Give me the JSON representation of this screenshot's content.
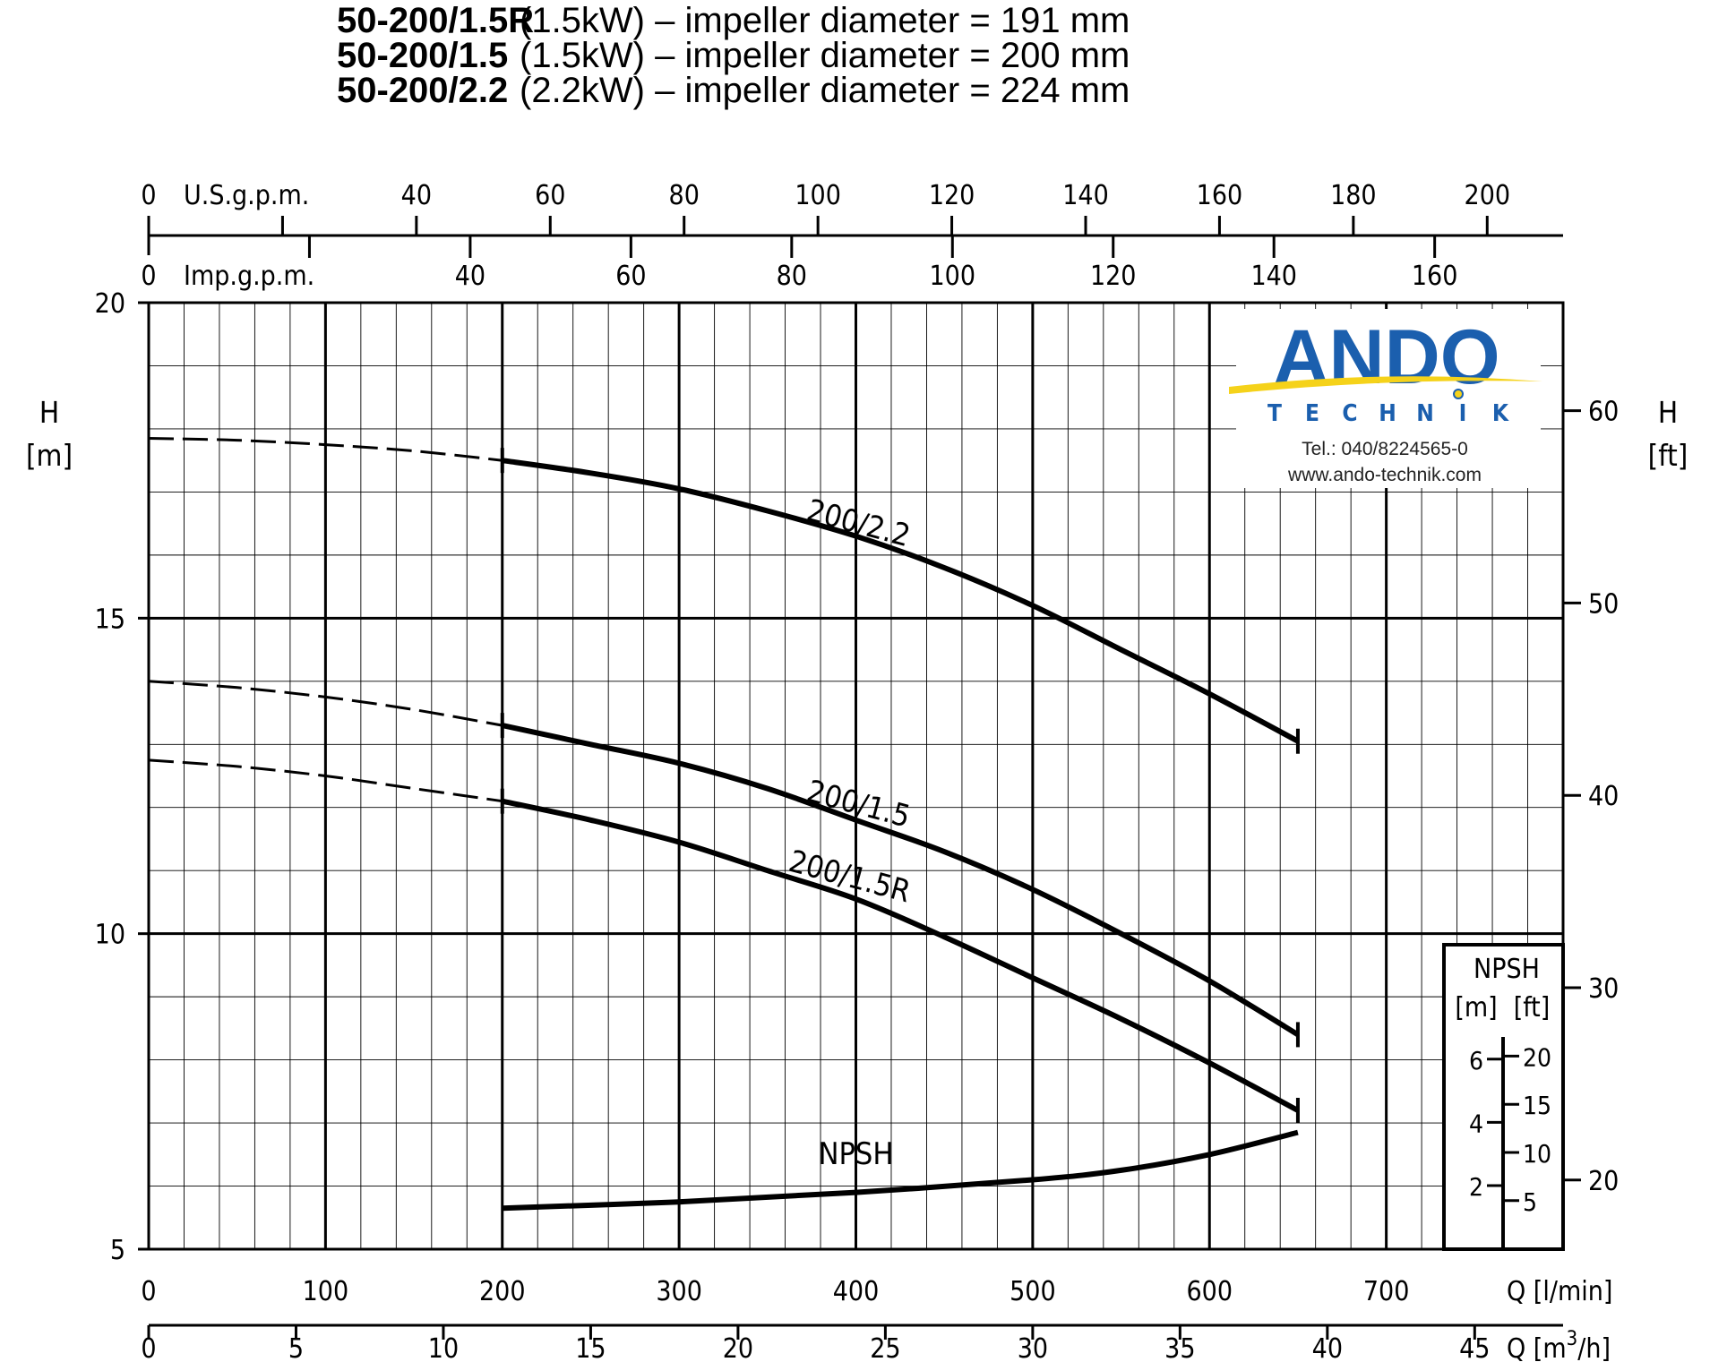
{
  "header": {
    "rows": [
      {
        "model": "50-200/1.5R",
        "desc": "(1.5kW) – impeller diameter = 191 mm"
      },
      {
        "model": "50-200/1.5",
        "desc": "(1.5kW) – impeller diameter = 200 mm"
      },
      {
        "model": "50-200/2.2",
        "desc": "(2.2kW) – impeller diameter = 224 mm"
      }
    ]
  },
  "logo": {
    "name": "ANDO",
    "sub": "TECHNIK",
    "sub_letters": [
      "T",
      "E",
      "C",
      "H",
      "N",
      "I",
      "K"
    ],
    "phone": "Tel.: 040/8224565-0",
    "web": "www.ando-technik.com",
    "name_color": "#1b5fae",
    "swoosh_color": "#f5d21a"
  },
  "chart_data": {
    "type": "line",
    "x_label": "Q [l/min]",
    "x_ticks": [
      0,
      100,
      200,
      300,
      400,
      500,
      600,
      700
    ],
    "xlim": [
      0,
      800
    ],
    "y_label_left": "H [m]",
    "y_label_left_lines": [
      "H",
      "[m]"
    ],
    "y_ticks_left": [
      5,
      10,
      15,
      20
    ],
    "ylim": [
      5,
      20
    ],
    "y_label_right": "H [ft]",
    "y_label_right_lines": [
      "H",
      "[ft]"
    ],
    "y_ticks_right": [
      20,
      30,
      40,
      50,
      60
    ],
    "top_axis_usgpm": {
      "label": "U.S.g.p.m.",
      "zero": "0",
      "ticks": [
        40,
        60,
        80,
        100,
        120,
        140,
        160,
        180,
        200
      ]
    },
    "top_axis_impgpm": {
      "label": "Imp.g.p.m.",
      "zero": "0",
      "ticks": [
        40,
        60,
        80,
        100,
        120,
        140,
        160
      ]
    },
    "bottom_axis_m3h": {
      "label": "Q [m³/h]",
      "label_main": "Q [m",
      "label_sup": "3",
      "label_end": "/h]",
      "ticks": [
        0,
        5,
        10,
        15,
        20,
        25,
        30,
        35,
        40,
        45
      ]
    },
    "grid": true,
    "series": [
      {
        "name": "200/2.2",
        "dashed": [
          [
            0,
            17.85
          ],
          [
            50,
            17.82
          ],
          [
            100,
            17.75
          ],
          [
            150,
            17.65
          ],
          [
            200,
            17.5
          ]
        ],
        "solid": [
          [
            200,
            17.5
          ],
          [
            250,
            17.3
          ],
          [
            300,
            17.05
          ],
          [
            350,
            16.7
          ],
          [
            400,
            16.3
          ],
          [
            450,
            15.8
          ],
          [
            500,
            15.2
          ],
          [
            550,
            14.5
          ],
          [
            600,
            13.8
          ],
          [
            650,
            13.05
          ]
        ]
      },
      {
        "name": "200/1.5",
        "dashed": [
          [
            0,
            14.0
          ],
          [
            50,
            13.9
          ],
          [
            100,
            13.75
          ],
          [
            150,
            13.55
          ],
          [
            200,
            13.3
          ]
        ],
        "solid": [
          [
            200,
            13.3
          ],
          [
            250,
            13.0
          ],
          [
            300,
            12.7
          ],
          [
            350,
            12.3
          ],
          [
            400,
            11.8
          ],
          [
            450,
            11.3
          ],
          [
            500,
            10.7
          ],
          [
            550,
            10.0
          ],
          [
            600,
            9.25
          ],
          [
            650,
            8.4
          ]
        ]
      },
      {
        "name": "200/1.5R",
        "dashed": [
          [
            0,
            12.75
          ],
          [
            50,
            12.65
          ],
          [
            100,
            12.5
          ],
          [
            150,
            12.3
          ],
          [
            200,
            12.1
          ]
        ],
        "solid": [
          [
            200,
            12.1
          ],
          [
            250,
            11.8
          ],
          [
            300,
            11.45
          ],
          [
            350,
            11.0
          ],
          [
            400,
            10.55
          ],
          [
            450,
            9.95
          ],
          [
            500,
            9.3
          ],
          [
            550,
            8.65
          ],
          [
            600,
            7.95
          ],
          [
            650,
            7.2
          ]
        ]
      },
      {
        "name": "NPSH",
        "solid": [
          [
            200,
            5.65
          ],
          [
            300,
            5.75
          ],
          [
            400,
            5.9
          ],
          [
            500,
            6.1
          ],
          [
            550,
            6.25
          ],
          [
            600,
            6.5
          ],
          [
            650,
            6.85
          ]
        ]
      }
    ],
    "npsh_scale": {
      "title": "NPSH",
      "m_label": "[m]",
      "ft_label": "[ft]",
      "m_ticks": [
        2,
        4,
        6
      ],
      "ft_ticks": [
        5,
        10,
        15,
        20
      ]
    }
  }
}
